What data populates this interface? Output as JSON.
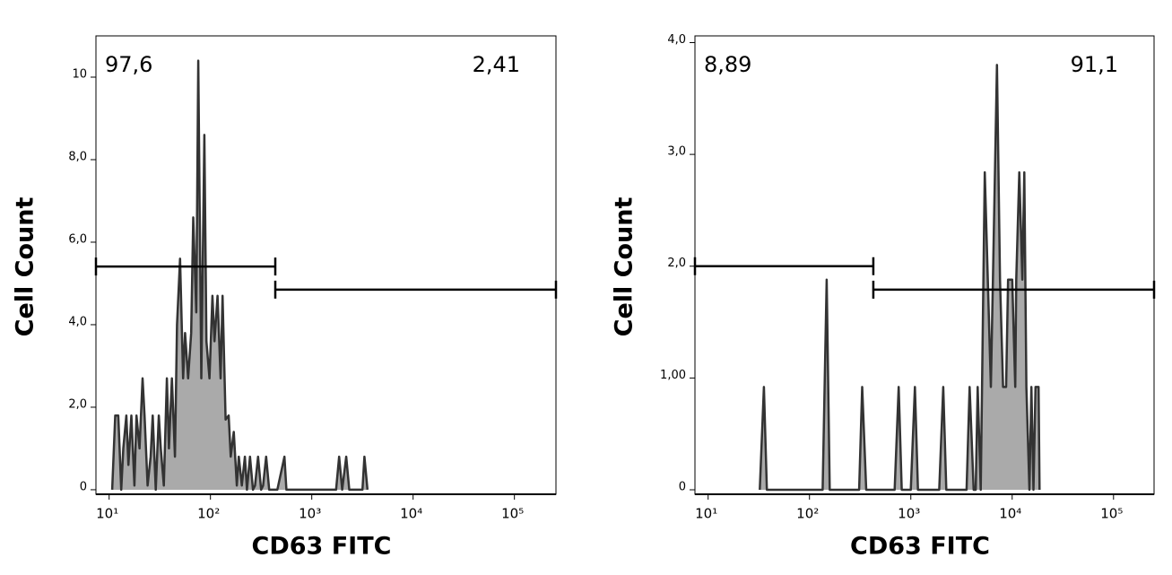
{
  "chart_data": [
    {
      "type": "area",
      "xlabel": "CD63 FITC",
      "ylabel": "Cell Count",
      "color": "#aaaaaa",
      "line_color": "#333333",
      "xlim": [
        0.87,
        5.41
      ],
      "ylim": [
        -0.11,
        11.0
      ],
      "xticks": [
        {
          "value": 1,
          "label": "10¹"
        },
        {
          "value": 2,
          "label": "10²"
        },
        {
          "value": 3,
          "label": "10³"
        },
        {
          "value": 4,
          "label": "10⁴"
        },
        {
          "value": 5,
          "label": "10⁵"
        }
      ],
      "yticks": [
        0,
        {
          "value": 2,
          "label": "2,0"
        },
        {
          "value": 4,
          "label": "4,0"
        },
        {
          "value": 6,
          "label": "6,0"
        },
        {
          "value": 8,
          "label": "8,0"
        },
        10
      ],
      "x": [
        1.03,
        1.06,
        1.09,
        1.12,
        1.14,
        1.17,
        1.19,
        1.22,
        1.25,
        1.27,
        1.3,
        1.33,
        1.35,
        1.38,
        1.41,
        1.43,
        1.46,
        1.49,
        1.51,
        1.54,
        1.57,
        1.59,
        1.62,
        1.65,
        1.67,
        1.7,
        1.73,
        1.75,
        1.78,
        1.81,
        1.83,
        1.86,
        1.88,
        1.91,
        1.94,
        1.96,
        1.99,
        2.02,
        2.04,
        2.07,
        2.1,
        2.12,
        2.15,
        2.18,
        2.2,
        2.23,
        2.26,
        2.28,
        2.31,
        2.34,
        2.36,
        2.39,
        2.42,
        2.44,
        2.47,
        2.5,
        2.52,
        2.55,
        2.58,
        2.66,
        2.73,
        2.75,
        3.24,
        3.27,
        3.3,
        3.34,
        3.37,
        3.5,
        3.52,
        3.55
      ],
      "values": [
        0,
        1.8,
        1.8,
        0,
        1.0,
        1.8,
        0.6,
        1.8,
        0.1,
        1.8,
        1.0,
        2.7,
        1.8,
        0.1,
        0.8,
        1.8,
        0,
        1.8,
        1.0,
        0.1,
        2.7,
        1.0,
        2.7,
        0.8,
        4.0,
        5.6,
        2.7,
        3.8,
        2.7,
        3.8,
        6.6,
        4.3,
        10.4,
        2.7,
        8.6,
        3.6,
        2.7,
        4.7,
        3.6,
        4.7,
        2.7,
        4.7,
        1.7,
        1.8,
        0.8,
        1.4,
        0.1,
        0.8,
        0.1,
        0.8,
        0,
        0.8,
        0,
        0.1,
        0.8,
        0,
        0.1,
        0.8,
        0,
        0,
        0.8,
        0,
        0,
        0.8,
        0,
        0.8,
        0,
        0,
        0.8,
        0
      ],
      "gates": [
        {
          "label": "97,6",
          "x": [
            0.87,
            2.64
          ],
          "y": 5.41
        },
        {
          "label": "2,41",
          "x": [
            2.64,
            5.41
          ],
          "y": 4.85
        }
      ]
    },
    {
      "type": "area",
      "xlabel": "CD63 FITC",
      "ylabel": "Cell Count",
      "color": "#aaaaaa",
      "line_color": "#333333",
      "xlim": [
        0.87,
        5.4
      ],
      "ylim": [
        -0.04,
        4.06
      ],
      "xticks": [
        {
          "value": 1,
          "label": "10¹"
        },
        {
          "value": 2,
          "label": "10²"
        },
        {
          "value": 3,
          "label": "10³"
        },
        {
          "value": 4,
          "label": "10⁴"
        },
        {
          "value": 5,
          "label": "10⁵"
        }
      ],
      "yticks": [
        0,
        {
          "value": 1,
          "label": "1,00"
        },
        {
          "value": 2,
          "label": "2,0"
        },
        {
          "value": 3,
          "label": "3,0"
        },
        {
          "value": 4,
          "label": "4,0"
        }
      ],
      "x": [
        1.51,
        1.55,
        1.58,
        2.13,
        2.17,
        2.2,
        2.49,
        2.52,
        2.56,
        2.84,
        2.88,
        2.91,
        3.0,
        3.04,
        3.07,
        3.28,
        3.32,
        3.35,
        3.55,
        3.58,
        3.62,
        3.64,
        3.66,
        3.69,
        3.73,
        3.76,
        3.79,
        3.81,
        3.85,
        3.88,
        3.91,
        3.94,
        3.96,
        4.0,
        4.03,
        4.04,
        4.07,
        4.1,
        4.12,
        4.14,
        4.17,
        4.19,
        4.21,
        4.23,
        4.26,
        4.27
      ],
      "values": [
        0,
        0.92,
        0,
        0,
        1.88,
        0,
        0,
        0.92,
        0,
        0,
        0.92,
        0,
        0,
        0.92,
        0,
        0,
        0.92,
        0,
        0,
        0.92,
        0,
        0,
        0.92,
        0,
        2.84,
        1.88,
        0.92,
        1.88,
        3.8,
        1.88,
        0.92,
        0.92,
        1.88,
        1.88,
        0.92,
        1.88,
        2.84,
        1.88,
        2.84,
        0.92,
        0,
        0.92,
        0,
        0.92,
        0.92,
        0
      ],
      "gates": [
        {
          "label": "8,89",
          "x": [
            0.87,
            2.63
          ],
          "y": 2.0
        },
        {
          "label": "91,1",
          "x": [
            2.63,
            5.4
          ],
          "y": 1.79
        }
      ]
    }
  ]
}
